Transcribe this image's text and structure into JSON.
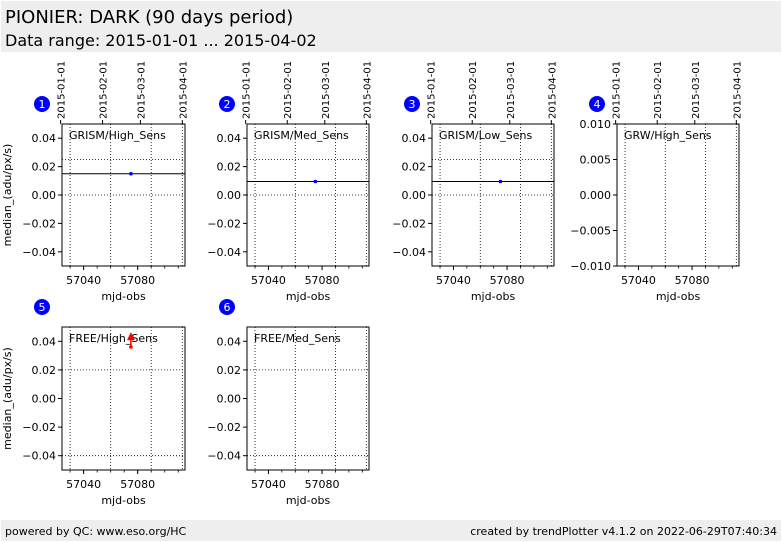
{
  "header": {
    "title": "PIONIER: DARK (90 days period)",
    "subtitle": "Data range: 2015-01-01 ... 2015-04-02"
  },
  "footer": {
    "left": "powered by QC: www.eso.org/HC",
    "right": "created by trendPlotter v4.1.2 on 2022-06-29T07:40:34"
  },
  "colors": {
    "point": "#0000ff",
    "badge": "#0000ff",
    "outlier": "#ff0000",
    "line": "#000000"
  },
  "chart_data": [
    {
      "type": "scatter",
      "id": 1,
      "label": "GRISM/High_Sens",
      "xlabel": "mjd-obs",
      "ylabel": "median_(adu/px/s)",
      "xlim": [
        57024,
        57115
      ],
      "ylim": [
        -0.05,
        0.05
      ],
      "xticks": [
        57040,
        57080
      ],
      "xticks_minor": [
        57030,
        57040,
        57050,
        57060,
        57070,
        57080,
        57090,
        57100,
        57110
      ],
      "yticks": [
        -0.04,
        -0.02,
        0.0,
        0.02,
        0.04
      ],
      "yticks_labels": [
        "−0.04",
        "−0.02",
        "0.00",
        "0.02",
        "0.04"
      ],
      "top_dates": [
        "2015-01-01",
        "2015-02-01",
        "2015-03-01",
        "2015-04-01"
      ],
      "top_dates_mjd": [
        57023,
        57054,
        57082,
        57113
      ],
      "hlines_dotted": [
        0.0,
        0.025
      ],
      "hline_solid": 0.015,
      "vgrid": [
        57030,
        57060,
        57090,
        57113
      ],
      "points": [
        {
          "x": 57075,
          "y": 0.015
        }
      ]
    },
    {
      "type": "scatter",
      "id": 2,
      "label": "GRISM/Med_Sens",
      "xlabel": "mjd-obs",
      "ylabel": "",
      "xlim": [
        57024,
        57115
      ],
      "ylim": [
        -0.05,
        0.05
      ],
      "xticks": [
        57040,
        57080
      ],
      "xticks_minor": [
        57030,
        57040,
        57050,
        57060,
        57070,
        57080,
        57090,
        57100,
        57110
      ],
      "yticks": [
        -0.04,
        -0.02,
        0.0,
        0.02,
        0.04
      ],
      "yticks_labels": [
        "−0.04",
        "−0.02",
        "0.00",
        "0.02",
        "0.04"
      ],
      "top_dates": [
        "2015-01-01",
        "2015-02-01",
        "2015-03-01",
        "2015-04-01"
      ],
      "top_dates_mjd": [
        57023,
        57054,
        57082,
        57113
      ],
      "hlines_dotted": [
        0.0,
        0.025
      ],
      "hline_solid": 0.0095,
      "vgrid": [
        57030,
        57060,
        57090,
        57113
      ],
      "points": [
        {
          "x": 57075,
          "y": 0.0095
        }
      ]
    },
    {
      "type": "scatter",
      "id": 3,
      "label": "GRISM/Low_Sens",
      "xlabel": "mjd-obs",
      "ylabel": "",
      "xlim": [
        57024,
        57115
      ],
      "ylim": [
        -0.05,
        0.05
      ],
      "xticks": [
        57040,
        57080
      ],
      "xticks_minor": [
        57030,
        57040,
        57050,
        57060,
        57070,
        57080,
        57090,
        57100,
        57110
      ],
      "yticks": [
        -0.04,
        -0.02,
        0.0,
        0.02,
        0.04
      ],
      "yticks_labels": [
        "−0.04",
        "−0.02",
        "0.00",
        "0.02",
        "0.04"
      ],
      "top_dates": [
        "2015-01-01",
        "2015-02-01",
        "2015-03-01",
        "2015-04-01"
      ],
      "top_dates_mjd": [
        57023,
        57054,
        57082,
        57113
      ],
      "hlines_dotted": [
        0.0,
        0.025
      ],
      "hline_solid": 0.0095,
      "vgrid": [
        57030,
        57060,
        57090,
        57113
      ],
      "points": [
        {
          "x": 57075,
          "y": 0.0095
        }
      ]
    },
    {
      "type": "scatter",
      "id": 4,
      "label": "GRW/High_Sens",
      "xlabel": "mjd-obs",
      "ylabel": "",
      "xlim": [
        57024,
        57115
      ],
      "ylim": [
        -0.01,
        0.01
      ],
      "xticks": [
        57040,
        57080
      ],
      "xticks_minor": [
        57030,
        57040,
        57050,
        57060,
        57070,
        57080,
        57090,
        57100,
        57110
      ],
      "yticks": [
        -0.01,
        -0.005,
        0.0,
        0.005,
        0.01
      ],
      "yticks_labels": [
        "−0.010",
        "−0.005",
        "0.000",
        "0.005",
        "0.010"
      ],
      "top_dates": [
        "2015-01-01",
        "2015-02-01",
        "2015-03-01",
        "2015-04-01"
      ],
      "top_dates_mjd": [
        57023,
        57054,
        57082,
        57113
      ],
      "hlines_dotted": [],
      "hline_solid": null,
      "vgrid": [
        57030,
        57060,
        57090,
        57113
      ],
      "points": []
    },
    {
      "type": "scatter",
      "id": 5,
      "label": "FREE/High_Sens",
      "xlabel": "mjd-obs",
      "ylabel": "median_(adu/px/s)",
      "xlim": [
        57024,
        57115
      ],
      "ylim": [
        -0.05,
        0.05
      ],
      "xticks": [
        57040,
        57080
      ],
      "xticks_minor": [
        57030,
        57040,
        57050,
        57060,
        57070,
        57080,
        57090,
        57100,
        57110
      ],
      "yticks": [
        -0.04,
        -0.02,
        0.0,
        0.02,
        0.04
      ],
      "yticks_labels": [
        "−0.04",
        "−0.02",
        "0.00",
        "0.02",
        "0.04"
      ],
      "top_dates": [],
      "top_dates_mjd": [],
      "hlines_dotted": [
        0.02,
        -0.04
      ],
      "hline_solid": null,
      "vgrid": [
        57030,
        57060,
        57090,
        57113
      ],
      "points": [
        {
          "x": 57075,
          "y": 0.036
        }
      ],
      "outlier_arrow": {
        "x": 57075,
        "y": 0.045
      }
    },
    {
      "type": "scatter",
      "id": 6,
      "label": "FREE/Med_Sens",
      "xlabel": "mjd-obs",
      "ylabel": "",
      "xlim": [
        57024,
        57115
      ],
      "ylim": [
        -0.05,
        0.05
      ],
      "xticks": [
        57040,
        57080
      ],
      "xticks_minor": [
        57030,
        57040,
        57050,
        57060,
        57070,
        57080,
        57090,
        57100,
        57110
      ],
      "yticks": [
        -0.04,
        -0.02,
        0.0,
        0.02,
        0.04
      ],
      "yticks_labels": [
        "−0.04",
        "−0.02",
        "0.00",
        "0.02",
        "0.04"
      ],
      "top_dates": [],
      "top_dates_mjd": [],
      "hlines_dotted": [
        0.02,
        -0.04
      ],
      "hline_solid": null,
      "vgrid": [
        57030,
        57060,
        57090,
        57113
      ],
      "points": []
    }
  ]
}
